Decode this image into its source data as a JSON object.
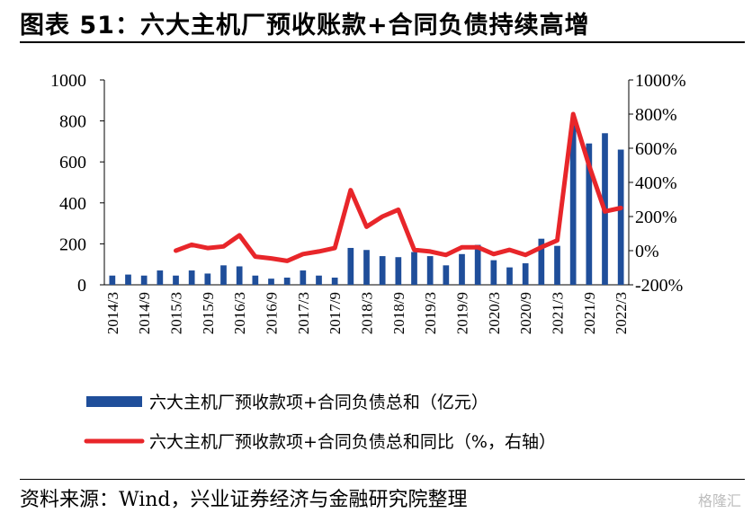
{
  "title": "图表 51：六大主机厂预收账款+合同负债持续高增",
  "source": "资料来源：Wind，兴业证券经济与金融研究院整理",
  "watermark": "格隆汇",
  "colors": {
    "bar": "#1f4e9a",
    "line": "#e8262a",
    "axis": "#000000"
  },
  "chart_data": {
    "type": "bar",
    "x_labels_shown": [
      "2014/3",
      "2014/9",
      "2015/3",
      "2015/9",
      "2016/3",
      "2016/9",
      "2017/3",
      "2017/9",
      "2018/3",
      "2018/9",
      "2019/3",
      "2019/9",
      "2020/3",
      "2020/9",
      "2021/3",
      "2021/9",
      "2022/3"
    ],
    "y_left": {
      "min": 0,
      "max": 1000,
      "ticks": [
        "0",
        "200",
        "400",
        "600",
        "800",
        "1000"
      ]
    },
    "y_right": {
      "min": -200,
      "max": 1000,
      "ticks": [
        "-200%",
        "0%",
        "200%",
        "400%",
        "600%",
        "800%",
        "1000%"
      ]
    },
    "series": [
      {
        "name": "六大主机厂预收款项+合同负债总和（亿元）",
        "type": "bar",
        "axis": "left",
        "values": [
          45,
          50,
          45,
          70,
          45,
          70,
          55,
          95,
          90,
          45,
          30,
          35,
          70,
          45,
          35,
          180,
          170,
          140,
          135,
          160,
          140,
          95,
          150,
          195,
          120,
          85,
          105,
          225,
          190,
          780,
          690,
          740,
          660
        ]
      },
      {
        "name": "六大主机厂预收款项+合同负债总和同比（%，右轴）",
        "type": "line",
        "axis": "right",
        "values": [
          null,
          null,
          null,
          null,
          0,
          35,
          15,
          25,
          90,
          -35,
          -45,
          -60,
          -20,
          -5,
          15,
          355,
          140,
          200,
          240,
          5,
          -5,
          -25,
          20,
          20,
          -20,
          5,
          -25,
          20,
          60,
          800,
          500,
          230,
          250
        ]
      }
    ]
  }
}
